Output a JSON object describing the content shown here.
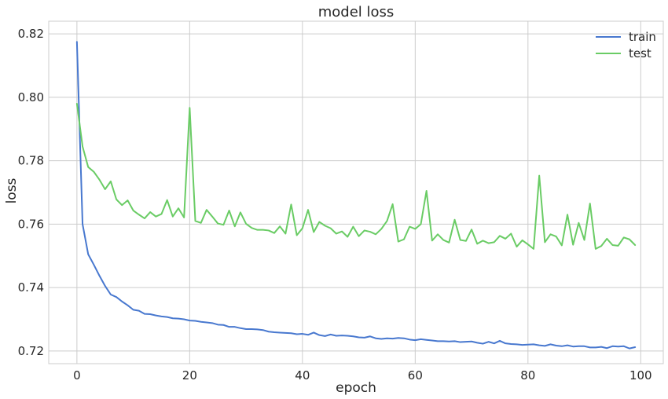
{
  "chart_data": {
    "type": "line",
    "title": "model loss",
    "xlabel": "epoch",
    "ylabel": "loss",
    "xlim": [
      -5,
      104
    ],
    "ylim": [
      0.716,
      0.824
    ],
    "xticks": [
      0,
      20,
      40,
      60,
      80,
      100
    ],
    "yticks": [
      0.72,
      0.74,
      0.76,
      0.78,
      0.8,
      0.82
    ],
    "ytick_labels": [
      "0.72",
      "0.74",
      "0.76",
      "0.78",
      "0.80",
      "0.82"
    ],
    "grid": true,
    "legend_position": "top-right",
    "series": [
      {
        "name": "train",
        "color": "#4878cf",
        "x_start": 0,
        "values": [
          0.8175,
          0.76,
          0.7505,
          0.7472,
          0.7437,
          0.7405,
          0.7378,
          0.737,
          0.7356,
          0.7344,
          0.733,
          0.7327,
          0.7317,
          0.7316,
          0.7312,
          0.7309,
          0.7307,
          0.7303,
          0.7302,
          0.73,
          0.7296,
          0.7295,
          0.7292,
          0.729,
          0.7288,
          0.7283,
          0.7282,
          0.7276,
          0.7276,
          0.7272,
          0.7269,
          0.7269,
          0.7268,
          0.7266,
          0.7261,
          0.7259,
          0.7258,
          0.7257,
          0.7256,
          0.7253,
          0.7254,
          0.7251,
          0.7258,
          0.725,
          0.7247,
          0.7252,
          0.7248,
          0.7249,
          0.7248,
          0.7246,
          0.7243,
          0.7242,
          0.7246,
          0.724,
          0.7238,
          0.724,
          0.7239,
          0.7241,
          0.724,
          0.7236,
          0.7234,
          0.7237,
          0.7235,
          0.7233,
          0.7231,
          0.7231,
          0.723,
          0.7231,
          0.7228,
          0.7229,
          0.723,
          0.7226,
          0.7223,
          0.7229,
          0.7224,
          0.7232,
          0.7224,
          0.7222,
          0.7221,
          0.7219,
          0.722,
          0.7221,
          0.7218,
          0.7216,
          0.7221,
          0.7217,
          0.7215,
          0.7218,
          0.7214,
          0.7215,
          0.7215,
          0.7211,
          0.7211,
          0.7213,
          0.7209,
          0.7215,
          0.7214,
          0.7215,
          0.7208,
          0.7212
        ]
      },
      {
        "name": "test",
        "color": "#6acc65",
        "x_start": 0,
        "values": [
          0.798,
          0.7845,
          0.778,
          0.7765,
          0.774,
          0.771,
          0.7735,
          0.7678,
          0.766,
          0.7675,
          0.7643,
          0.763,
          0.7618,
          0.7638,
          0.7624,
          0.7632,
          0.7676,
          0.7624,
          0.765,
          0.7621,
          0.7967,
          0.761,
          0.7604,
          0.7645,
          0.7624,
          0.7602,
          0.7598,
          0.7643,
          0.7593,
          0.7637,
          0.7601,
          0.7588,
          0.7582,
          0.7582,
          0.758,
          0.7572,
          0.7593,
          0.757,
          0.7662,
          0.7565,
          0.7587,
          0.7645,
          0.7575,
          0.7607,
          0.7595,
          0.7587,
          0.757,
          0.7577,
          0.756,
          0.7592,
          0.7562,
          0.758,
          0.7576,
          0.7568,
          0.7585,
          0.761,
          0.7663,
          0.7545,
          0.7552,
          0.7592,
          0.7585,
          0.76,
          0.7705,
          0.7548,
          0.7568,
          0.755,
          0.7542,
          0.7614,
          0.755,
          0.7547,
          0.7583,
          0.7538,
          0.7548,
          0.754,
          0.7543,
          0.7563,
          0.7554,
          0.757,
          0.7529,
          0.7549,
          0.7536,
          0.7522,
          0.7753,
          0.7543,
          0.7568,
          0.7561,
          0.7533,
          0.763,
          0.7535,
          0.7604,
          0.755,
          0.7665,
          0.7522,
          0.7531,
          0.7554,
          0.7534,
          0.7532,
          0.7558,
          0.7552,
          0.7534
        ]
      }
    ]
  }
}
